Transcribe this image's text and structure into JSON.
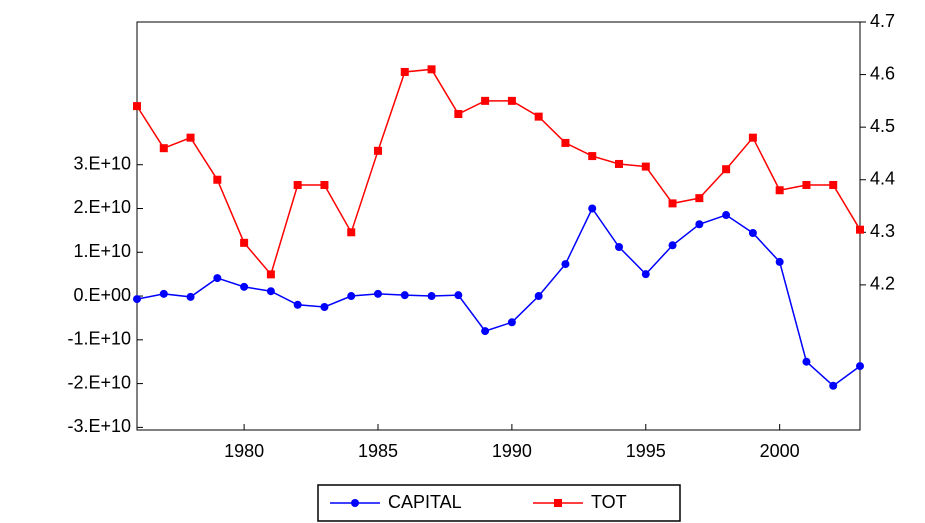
{
  "chart_data": {
    "type": "line",
    "x": [
      1976,
      1977,
      1978,
      1979,
      1980,
      1981,
      1982,
      1983,
      1984,
      1985,
      1986,
      1987,
      1988,
      1989,
      1990,
      1991,
      1992,
      1993,
      1994,
      1995,
      1996,
      1997,
      1998,
      1999,
      2000,
      2001,
      2002,
      2003
    ],
    "xlim": [
      1976,
      2003
    ],
    "xticks": [
      1980,
      1985,
      1990,
      1995,
      2000
    ],
    "ylim": [
      -30600000000.0,
      62600000000.0
    ],
    "yticks": [
      {
        "value": -30000000000.0,
        "label": "-3.E+10"
      },
      {
        "value": -20000000000.0,
        "label": "-2.E+10"
      },
      {
        "value": -10000000000.0,
        "label": "-1.E+10"
      },
      {
        "value": 0,
        "label": "0.E+00"
      },
      {
        "value": 10000000000.0,
        "label": "1.E+10"
      },
      {
        "value": 20000000000.0,
        "label": "2.E+10"
      },
      {
        "value": 30000000000.0,
        "label": "3.E+10"
      }
    ],
    "y2lim": [
      3.924,
      4.7
    ],
    "y2ticks": [
      4.2,
      4.3,
      4.4,
      4.5,
      4.6,
      4.7
    ],
    "legend": "bottom",
    "series": [
      {
        "name": "CAPITAL",
        "color": "#0000ff",
        "values": [
          -700000000.0,
          500000000.0,
          -200000000.0,
          4100000000.0,
          2100000000.0,
          1100000000.0,
          -2000000000.0,
          -2500000000.0,
          0,
          500000000.0,
          200000000.0,
          0,
          200000000.0,
          -8000000000.0,
          -6000000000.0,
          0,
          7300000000.0,
          20000000000.0,
          11200000000.0,
          5000000000.0,
          11600000000.0,
          16400000000.0,
          18500000000.0,
          14400000000.0,
          7800000000.0,
          -15000000000.0,
          -20500000000.0,
          -16000000000.0
        ]
      },
      {
        "name": "TOT",
        "color": "#ff0000",
        "axis": "y2",
        "values": [
          4.54,
          4.46,
          4.48,
          4.4,
          4.28,
          4.22,
          4.39,
          4.39,
          4.3,
          4.455,
          4.605,
          4.61,
          4.525,
          4.55,
          4.55,
          4.52,
          4.47,
          4.445,
          4.43,
          4.425,
          4.355,
          4.365,
          4.42,
          4.48,
          4.38,
          4.39,
          4.39,
          4.305
        ]
      }
    ]
  }
}
